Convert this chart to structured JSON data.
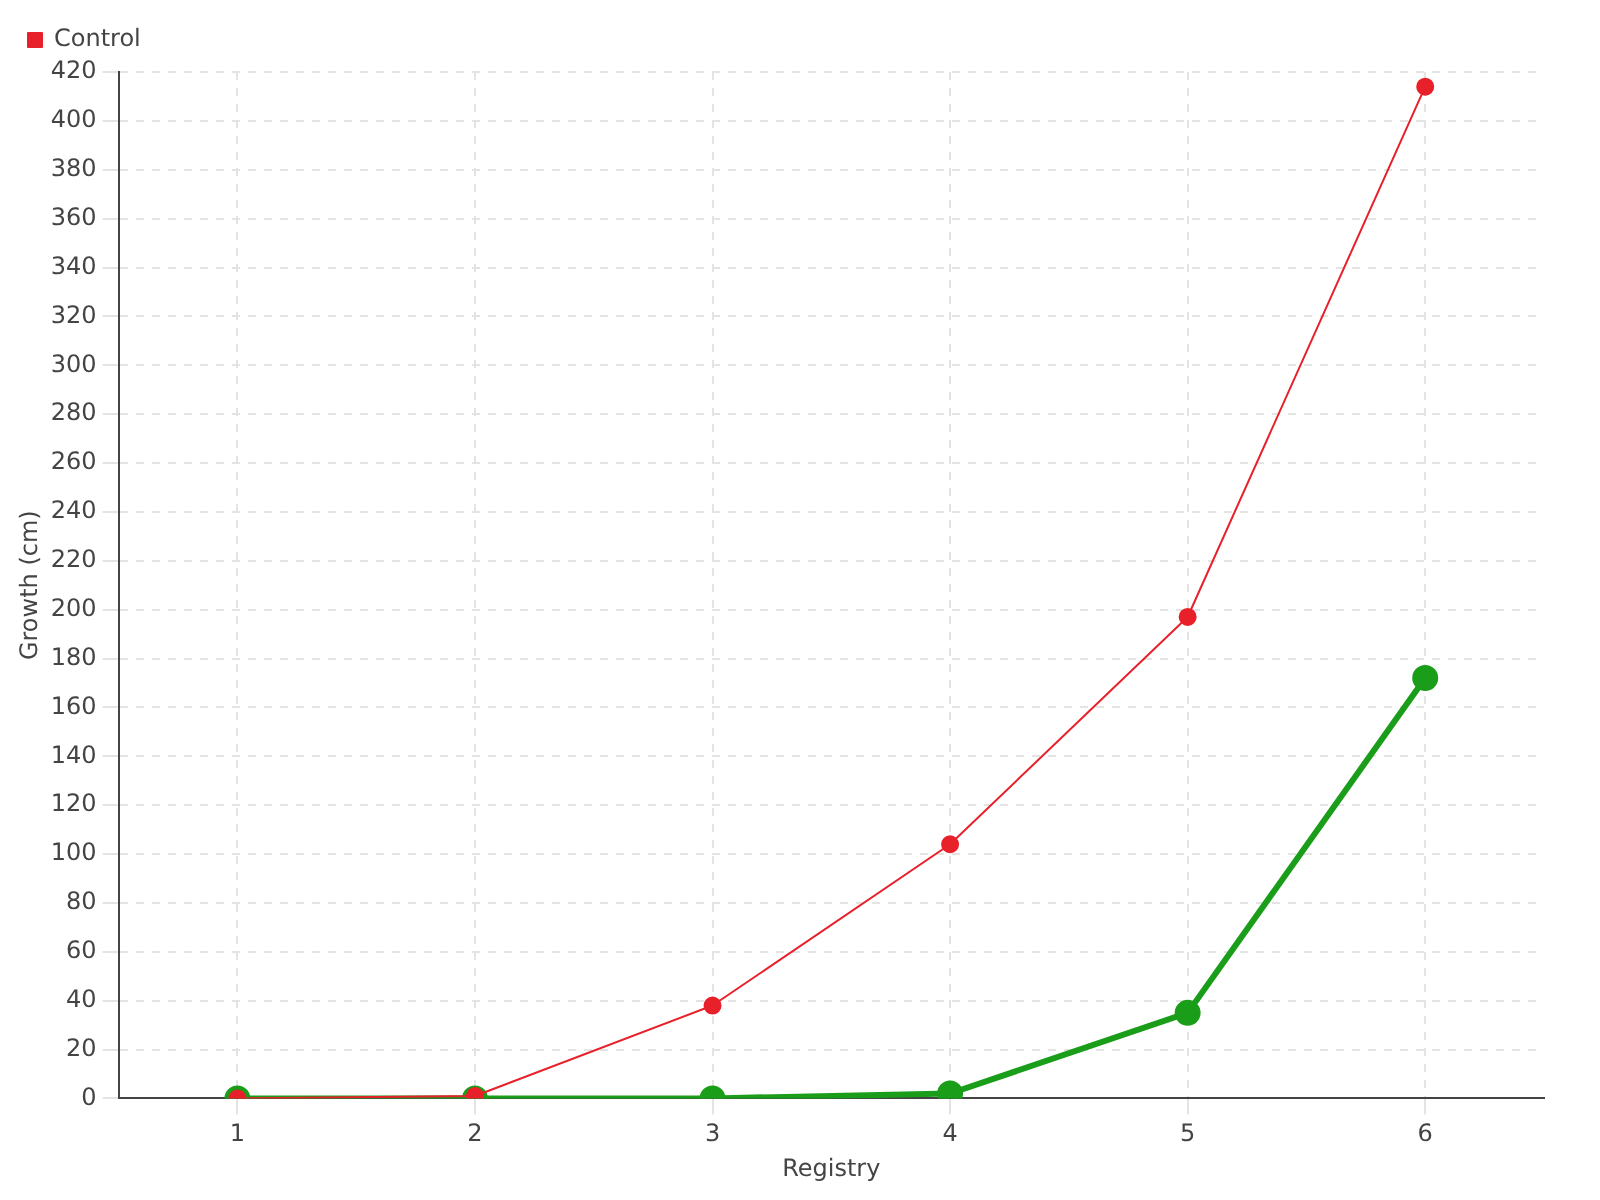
{
  "chart_data": {
    "type": "line",
    "xlabel": "Registry",
    "ylabel": "Growth (cm)",
    "categories": [
      "1",
      "2",
      "3",
      "4",
      "5",
      "6"
    ],
    "series": [
      {
        "color": "#1a9e1a",
        "values": [
          0,
          0,
          0,
          2,
          35,
          172
        ]
      },
      {
        "name": "Control",
        "color": "#e8202a",
        "values": [
          0,
          1,
          38,
          104,
          197,
          414
        ]
      }
    ],
    "ylim": [
      0,
      420
    ],
    "yticks": [
      0,
      20,
      40,
      60,
      80,
      100,
      120,
      140,
      160,
      180,
      200,
      220,
      240,
      260,
      280,
      300,
      320,
      340,
      360,
      380,
      400,
      420
    ],
    "grid": true,
    "legend": "top left",
    "marker": "circle",
    "line_style": "solid"
  }
}
